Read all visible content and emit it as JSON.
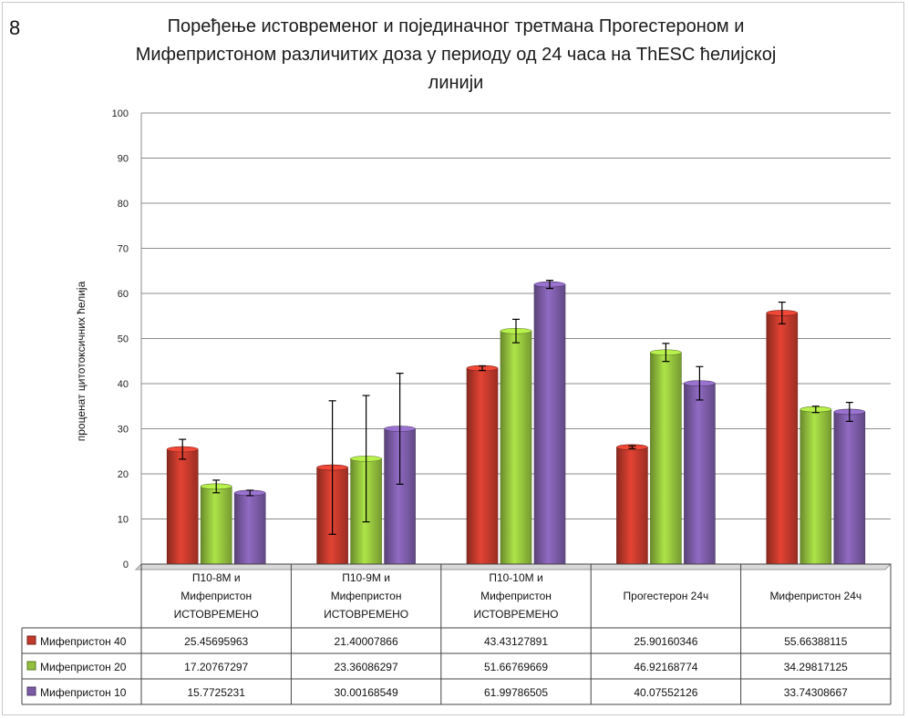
{
  "figure_number": "8",
  "chart_data": {
    "type": "bar",
    "title": "Поређење истовременог и појединачног третмана Прогестероном и Мифепристоном различитих доза у периоду од 24 часа на ThESC ћелијској линији",
    "title_lines": [
      "Поређење истовременог и појединачног третмана Прогестероном и",
      "Мифепристоном различитих доза у периоду од 24 часа на ThESC ћелијској",
      "линији"
    ],
    "ylabel": "проценат цитотоксичних ћелија",
    "xlabel": "",
    "ylim": [
      0,
      100
    ],
    "yticks": [
      0,
      10,
      20,
      30,
      40,
      50,
      60,
      70,
      80,
      90,
      100
    ],
    "grid": true,
    "legend_placement": "data table",
    "categories": [
      [
        "П10-8М и",
        "Мифепристон",
        "ИСТОВРЕМЕНО"
      ],
      [
        "П10-9М и",
        "Мифепристон",
        "ИСТОВРЕМЕНО"
      ],
      [
        "П10-10М и",
        "Мифепристон",
        "ИСТОВРЕМЕНО"
      ],
      [
        "Прогестерон 24ч"
      ],
      [
        "Мифепристон 24ч"
      ]
    ],
    "series": [
      {
        "name": "Мифепристон 40",
        "color": "#c0392b",
        "values": [
          25.45695963,
          21.40007866,
          43.43127891,
          25.90160346,
          55.66388115
        ],
        "value_labels": [
          "25.45695963",
          "21.40007866",
          "43.43127891",
          "25.90160346",
          "55.66388115"
        ],
        "error": [
          2.2,
          14.8,
          0.5,
          0.3,
          2.4
        ]
      },
      {
        "name": "Мифепристон 20",
        "color": "#93c13d",
        "values": [
          17.20767297,
          23.36086297,
          51.66769669,
          46.92168774,
          34.29817125
        ],
        "value_labels": [
          "17.20767297",
          "23.36086297",
          "51.66769669",
          "46.92168774",
          "34.29817125"
        ],
        "error": [
          1.4,
          14.0,
          2.6,
          2.0,
          0.7
        ]
      },
      {
        "name": "Мифепристон 10",
        "color": "#7b5ba6",
        "values": [
          15.7725231,
          30.00168549,
          61.99786505,
          40.07552126,
          33.74308667
        ],
        "value_labels": [
          "15.7725231",
          "30.00168549",
          "61.99786505",
          "40.07552126",
          "33.74308667"
        ],
        "error": [
          0.6,
          12.3,
          0.9,
          3.7,
          2.1
        ]
      }
    ]
  }
}
